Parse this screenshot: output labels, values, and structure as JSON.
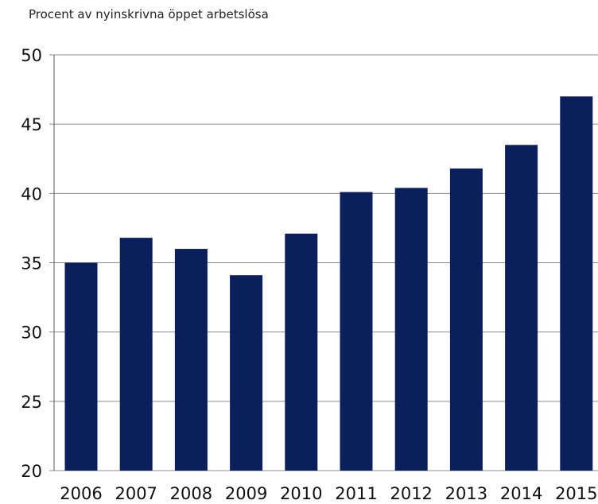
{
  "chart_data": {
    "type": "bar",
    "ylabel": "Procent av nyinskrivna öppet arbetslösa",
    "categories": [
      "2006",
      "2007",
      "2008",
      "2009",
      "2010",
      "2011",
      "2012",
      "2013",
      "2014",
      "2015"
    ],
    "values": [
      35.0,
      36.8,
      36.0,
      34.1,
      37.1,
      40.1,
      40.4,
      41.8,
      43.5,
      47.0
    ],
    "ylim": [
      20,
      50
    ],
    "yticks": [
      "20",
      "25",
      "30",
      "35",
      "40",
      "45",
      "50"
    ],
    "grid": true,
    "legend": "none",
    "colors": {
      "bar": "#0b1f5c",
      "grid": "#8c8c8c",
      "axis": "#555555"
    }
  }
}
